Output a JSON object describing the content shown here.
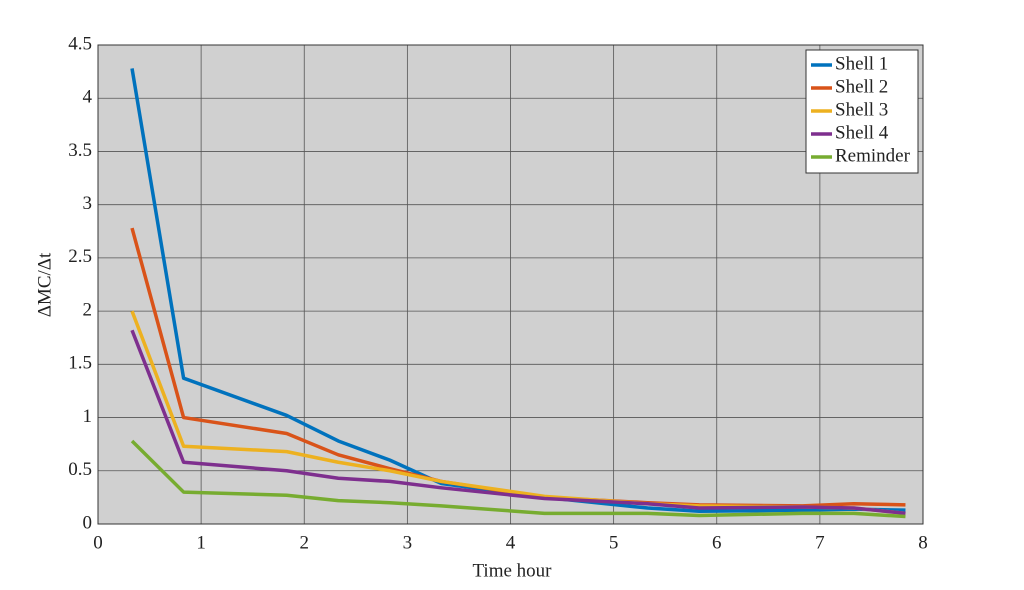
{
  "chart_data": {
    "type": "line",
    "x_label": "Time hour",
    "y_label": "ΔMC/Δt",
    "x": [
      0.33,
      0.83,
      1.83,
      2.33,
      2.83,
      3.33,
      4.33,
      5.33,
      5.83,
      6.83,
      7.33,
      7.83
    ],
    "series": [
      {
        "name": "Shell 1",
        "color": "#0072bd",
        "values": [
          4.28,
          1.37,
          1.02,
          0.78,
          0.6,
          0.38,
          0.25,
          0.15,
          0.12,
          0.13,
          0.14,
          0.13
        ]
      },
      {
        "name": "Shell 2",
        "color": "#d95319",
        "values": [
          2.78,
          1.0,
          0.85,
          0.65,
          0.52,
          0.4,
          0.25,
          0.2,
          0.18,
          0.17,
          0.19,
          0.18
        ]
      },
      {
        "name": "Shell 3",
        "color": "#edb120",
        "values": [
          2.0,
          0.73,
          0.68,
          0.58,
          0.5,
          0.4,
          0.26,
          0.19,
          0.17,
          0.16,
          0.15,
          0.1
        ]
      },
      {
        "name": "Shell 4",
        "color": "#7e2f8e",
        "values": [
          1.82,
          0.58,
          0.5,
          0.43,
          0.4,
          0.34,
          0.24,
          0.19,
          0.15,
          0.16,
          0.15,
          0.1
        ]
      },
      {
        "name": "Reminder",
        "color": "#77ac30",
        "values": [
          0.78,
          0.3,
          0.27,
          0.22,
          0.2,
          0.17,
          0.1,
          0.1,
          0.08,
          0.1,
          0.1,
          0.07
        ]
      }
    ],
    "xlim": [
      0,
      8
    ],
    "xticks": [
      0,
      1,
      2,
      3,
      4,
      5,
      6,
      7,
      8
    ],
    "ylim": [
      0,
      4.5
    ],
    "yticks": [
      0,
      0.5,
      1,
      1.5,
      2,
      2.5,
      3,
      3.5,
      4,
      4.5
    ],
    "grid": true,
    "legend": "top-right"
  }
}
